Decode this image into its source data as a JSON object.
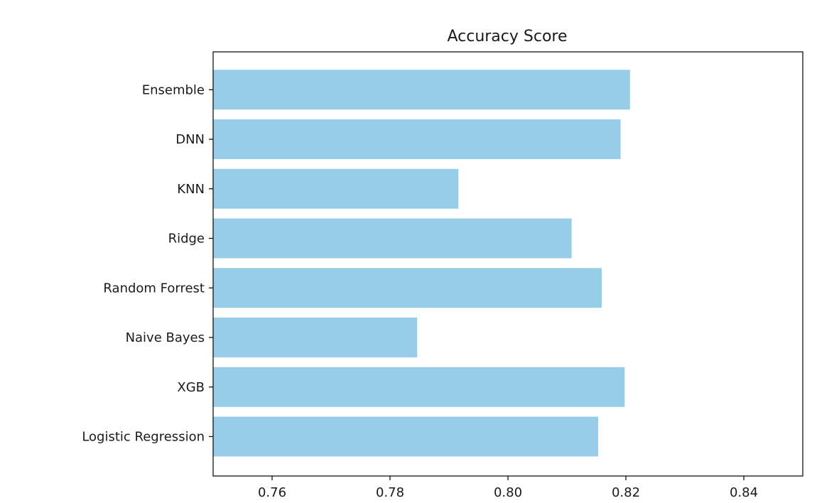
{
  "chart_data": {
    "type": "bar",
    "orientation": "horizontal",
    "title": "Accuracy Score",
    "xlabel": "",
    "ylabel": "",
    "categories": [
      "Logistic Regression",
      "XGB",
      "Naive Bayes",
      "Random Forrest",
      "Ridge",
      "KNN",
      "DNN",
      "Ensemble"
    ],
    "values": [
      0.8153,
      0.8198,
      0.7846,
      0.8159,
      0.8108,
      0.7916,
      0.8191,
      0.8207
    ],
    "xlim": [
      0.75,
      0.85
    ],
    "xticks": [
      "0.76",
      "0.78",
      "0.80",
      "0.82",
      "0.84"
    ],
    "xtick_values": [
      0.76,
      0.78,
      0.8,
      0.82,
      0.84
    ],
    "grid": false,
    "legend": "none",
    "bar_color": "#97cde8",
    "axis_color": "#000000"
  }
}
